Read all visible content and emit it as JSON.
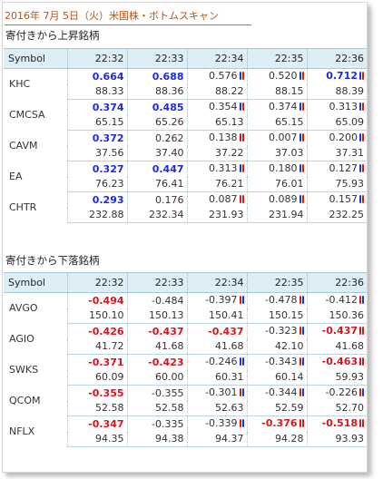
{
  "title": "2016年 7月 5日（火）米国株・ボトムスキャン",
  "colors": {
    "up": "#1d2be0",
    "down": "#d8151d",
    "header_bg": "#deeef6",
    "title": "#b5541b"
  },
  "sections": [
    {
      "title": "寄付きから上昇銘柄",
      "header": {
        "symbol": "Symbol",
        "times": [
          "22:32",
          "22:33",
          "22:34",
          "22:35",
          "22:36"
        ]
      },
      "rows": [
        {
          "symbol": "KHC",
          "changes": [
            {
              "v": "0.664",
              "s": "up"
            },
            {
              "v": "0.688",
              "s": "up"
            },
            {
              "v": "0.576",
              "m": "br"
            },
            {
              "v": "0.520",
              "m": "br"
            },
            {
              "v": "0.712",
              "s": "up",
              "m": "br"
            }
          ],
          "prices": [
            "88.33",
            "88.36",
            "88.22",
            "88.15",
            "88.39"
          ]
        },
        {
          "symbol": "CMCSA",
          "changes": [
            {
              "v": "0.374",
              "s": "up"
            },
            {
              "v": "0.485",
              "s": "up"
            },
            {
              "v": "0.354",
              "m": "br"
            },
            {
              "v": "0.374",
              "m": "br"
            },
            {
              "v": "0.313",
              "m": "br"
            }
          ],
          "prices": [
            "65.15",
            "65.26",
            "65.13",
            "65.15",
            "65.09"
          ]
        },
        {
          "symbol": "CAVM",
          "changes": [
            {
              "v": "0.372",
              "s": "up"
            },
            {
              "v": "0.262"
            },
            {
              "v": "0.138",
              "m": "rr"
            },
            {
              "v": "0.007",
              "m": "br"
            },
            {
              "v": "0.200",
              "m": "br"
            }
          ],
          "prices": [
            "37.56",
            "37.40",
            "37.22",
            "37.03",
            "37.31"
          ]
        },
        {
          "symbol": "EA",
          "changes": [
            {
              "v": "0.327",
              "s": "up"
            },
            {
              "v": "0.447",
              "s": "up"
            },
            {
              "v": "0.313",
              "m": "br"
            },
            {
              "v": "0.180",
              "m": "br"
            },
            {
              "v": "0.127",
              "m": "br"
            }
          ],
          "prices": [
            "76.23",
            "76.41",
            "76.21",
            "76.01",
            "75.93"
          ]
        },
        {
          "symbol": "CHTR",
          "changes": [
            {
              "v": "0.293",
              "s": "up"
            },
            {
              "v": "0.176"
            },
            {
              "v": "0.087",
              "m": "rr"
            },
            {
              "v": "0.089",
              "m": "br"
            },
            {
              "v": "0.157",
              "m": "br"
            }
          ],
          "prices": [
            "232.88",
            "232.34",
            "231.93",
            "231.94",
            "232.25"
          ]
        }
      ]
    },
    {
      "title": "寄付きから下落銘柄",
      "header": {
        "symbol": "Symbol",
        "times": [
          "22:32",
          "22:33",
          "22:34",
          "22:35",
          "22:36"
        ]
      },
      "rows": [
        {
          "symbol": "AVGO",
          "changes": [
            {
              "v": "-0.494",
              "s": "dn"
            },
            {
              "v": "-0.484"
            },
            {
              "v": "-0.397",
              "m": "rb"
            },
            {
              "v": "-0.478",
              "m": "rb"
            },
            {
              "v": "-0.412",
              "m": "rb"
            }
          ],
          "prices": [
            "150.10",
            "150.13",
            "150.41",
            "150.15",
            "150.36"
          ]
        },
        {
          "symbol": "AGIO",
          "changes": [
            {
              "v": "-0.426",
              "s": "dn"
            },
            {
              "v": "-0.437",
              "s": "dn"
            },
            {
              "v": "-0.437",
              "s": "dn"
            },
            {
              "v": "-0.323",
              "m": "rb"
            },
            {
              "v": "-0.437",
              "s": "dn",
              "m": "rr"
            }
          ],
          "prices": [
            "41.72",
            "41.68",
            "41.68",
            "42.10",
            "41.68"
          ]
        },
        {
          "symbol": "SWKS",
          "changes": [
            {
              "v": "-0.371",
              "s": "dn"
            },
            {
              "v": "-0.423",
              "s": "dn"
            },
            {
              "v": "-0.246",
              "m": "bb"
            },
            {
              "v": "-0.343",
              "m": "rb"
            },
            {
              "v": "-0.463",
              "s": "dn",
              "m": "rr"
            }
          ],
          "prices": [
            "60.09",
            "60.00",
            "60.31",
            "60.14",
            "59.93"
          ]
        },
        {
          "symbol": "QCOM",
          "changes": [
            {
              "v": "-0.355",
              "s": "dn"
            },
            {
              "v": "-0.355"
            },
            {
              "v": "-0.301",
              "m": "rb"
            },
            {
              "v": "-0.344",
              "m": "rb"
            },
            {
              "v": "-0.226",
              "m": "rb"
            }
          ],
          "prices": [
            "52.58",
            "52.58",
            "52.63",
            "52.59",
            "52.70"
          ]
        },
        {
          "symbol": "NFLX",
          "changes": [
            {
              "v": "-0.347",
              "s": "dn"
            },
            {
              "v": "-0.335"
            },
            {
              "v": "-0.339",
              "m": "rb"
            },
            {
              "v": "-0.376",
              "s": "dn",
              "m": "rr"
            },
            {
              "v": "-0.518",
              "s": "dn",
              "m": "rr"
            }
          ],
          "prices": [
            "94.35",
            "94.38",
            "94.37",
            "94.28",
            "93.93"
          ]
        }
      ]
    }
  ]
}
